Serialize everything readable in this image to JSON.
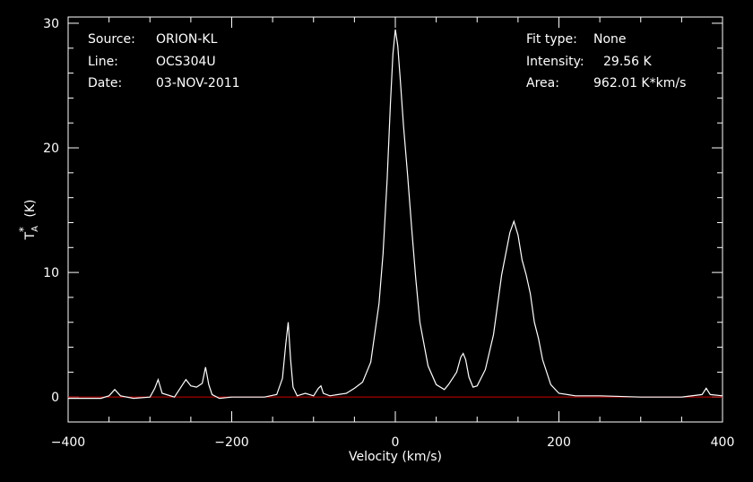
{
  "info": {
    "source_label": "Source:",
    "source_value": "ORION-KL",
    "line_label": "Line:",
    "line_value": "OCS304U",
    "date_label": "Date:",
    "date_value": "03-NOV-2011",
    "fit_label": "Fit type:",
    "fit_value": "None",
    "intensity_label": "Intensity:",
    "intensity_value": "29.56 K",
    "area_label": "Area:",
    "area_value": "962.01 K*km/s"
  },
  "chart_data": {
    "type": "line",
    "xlabel": "Velocity (km/s)",
    "ylabel_main": "T",
    "ylabel_sup": "*",
    "ylabel_sub": "A",
    "ylabel_unit": "(K)",
    "xlim": [
      -400,
      400
    ],
    "ylim": [
      -2,
      30.5
    ],
    "x_ticks": [
      -400,
      -200,
      0,
      200,
      400
    ],
    "y_ticks": [
      0,
      10,
      20,
      30
    ],
    "baseline": 0,
    "colors": {
      "background": "#000000",
      "line": "#ffffff",
      "baseline": "#cc0000",
      "axes": "#ffffff"
    },
    "series": [
      {
        "x": [
          -400,
          -360,
          -350,
          -343,
          -336,
          -320,
          -300,
          -294,
          -290,
          -285,
          -270,
          -262,
          -256,
          -250,
          -243,
          -236,
          -232,
          -228,
          -224,
          -215,
          -200,
          -180,
          -160,
          -145,
          -138,
          -134,
          -131,
          -128,
          -125,
          -120,
          -110,
          -100,
          -94,
          -91,
          -88,
          -80,
          -70,
          -60,
          -50,
          -40,
          -30,
          -20,
          -15,
          -10,
          -6,
          -3,
          0,
          3,
          6,
          10,
          15,
          20,
          25,
          30,
          40,
          50,
          60,
          65,
          70,
          75,
          80,
          83,
          86,
          90,
          95,
          100,
          110,
          120,
          130,
          140,
          145,
          150,
          155,
          160,
          165,
          170,
          175,
          180,
          190,
          200,
          220,
          250,
          300,
          350,
          375,
          380,
          385,
          400
        ],
        "y": [
          -0.1,
          -0.1,
          0.1,
          0.6,
          0.1,
          -0.1,
          0,
          0.7,
          1.4,
          0.3,
          0,
          0.8,
          1.4,
          0.9,
          0.8,
          1.1,
          2.4,
          1.0,
          0.2,
          -0.1,
          0,
          0,
          0,
          0.2,
          1.5,
          4.2,
          6.0,
          3.0,
          0.8,
          0.1,
          0.3,
          0.1,
          0.7,
          0.9,
          0.3,
          0.1,
          0.2,
          0.3,
          0.7,
          1.2,
          2.8,
          7.5,
          11.5,
          17.5,
          23.5,
          27.5,
          29.5,
          28.2,
          25.5,
          21.8,
          17.8,
          13.5,
          9.5,
          6.0,
          2.5,
          1.0,
          0.6,
          1.0,
          1.5,
          2.0,
          3.2,
          3.5,
          3.0,
          1.6,
          0.8,
          0.9,
          2.2,
          5.0,
          9.8,
          13.2,
          14.1,
          13.0,
          11.0,
          9.8,
          8.3,
          6.0,
          4.7,
          3.0,
          1.0,
          0.3,
          0.1,
          0.1,
          0,
          0,
          0.2,
          0.7,
          0.2,
          0.1
        ]
      }
    ]
  }
}
